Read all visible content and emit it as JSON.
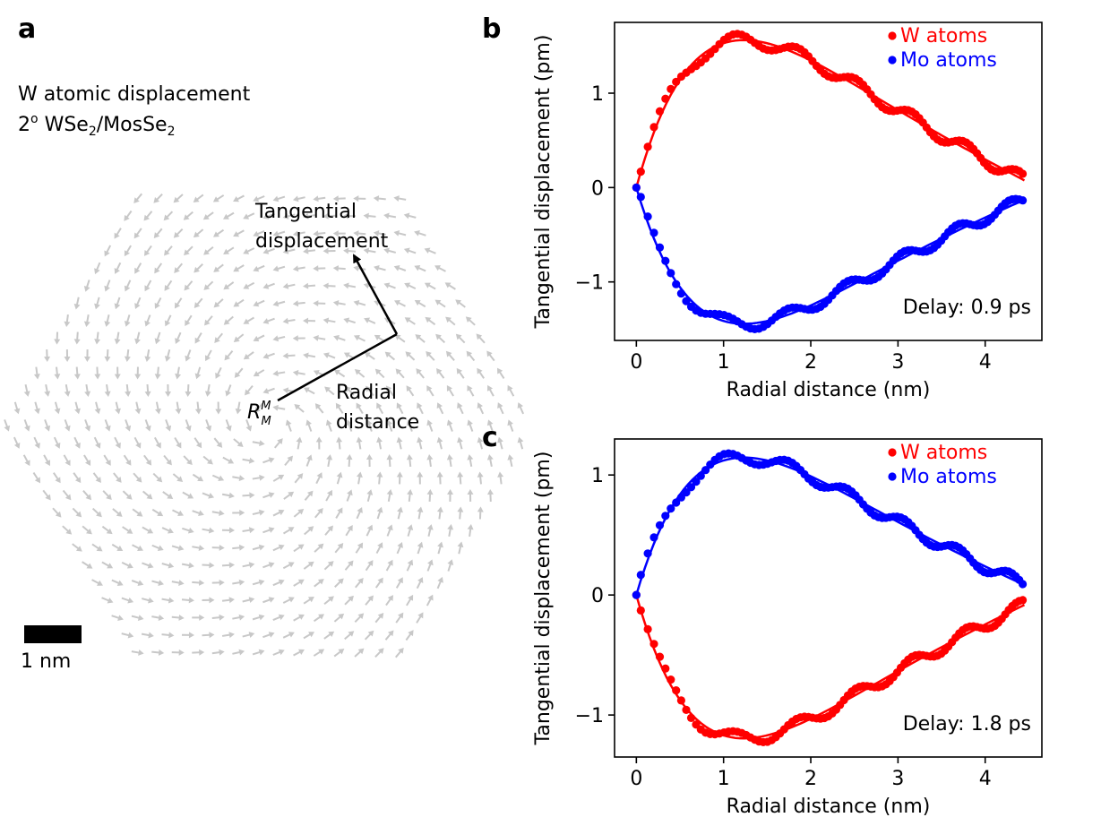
{
  "panel_a": {
    "label": "a",
    "title": "W atomic displacement",
    "material_prefix": "2",
    "degree": "o",
    "material_w": "WSe",
    "material_sub1": "2",
    "material_sep": "/MosSe",
    "material_sub2": "2",
    "tangential_line1": "Tangential",
    "tangential_line2": "displacement",
    "radial_line1": "Radial",
    "radial_line2": "distance",
    "origin_base": "R",
    "origin_sup": "M",
    "origin_sub": "M",
    "scale_bar_label": "1 nm",
    "arrow_color": "#c8c8c8"
  },
  "colors": {
    "w": "#ff0000",
    "mo": "#0000ff"
  },
  "chart_data": [
    {
      "panel": "b",
      "type": "scatter",
      "xlabel": "Radial distance (nm)",
      "ylabel": "Tangential displacement (pm)",
      "xlim": [
        -0.25,
        4.65
      ],
      "ylim": [
        -1.62,
        1.75
      ],
      "xticks": [
        0,
        1,
        2,
        3,
        4
      ],
      "yticks": [
        -1,
        0,
        1
      ],
      "ytick_labels": [
        "−1",
        "0",
        "1"
      ],
      "annotation": "Delay: 0.9 ps",
      "legend": [
        "W atoms",
        "Mo atoms"
      ],
      "series": [
        {
          "name": "W atoms",
          "color": "#ff0000",
          "peak": 1.57,
          "end": 0.1
        },
        {
          "name": "Mo atoms",
          "color": "#0000ff",
          "peak": -1.45,
          "end": -0.15
        }
      ]
    },
    {
      "panel": "c",
      "type": "scatter",
      "xlabel": "Radial distance (nm)",
      "ylabel": "Tangential displacement (pm)",
      "xlim": [
        -0.25,
        4.65
      ],
      "ylim": [
        -1.35,
        1.3
      ],
      "xticks": [
        0,
        1,
        2,
        3,
        4
      ],
      "yticks": [
        -1,
        0,
        1
      ],
      "ytick_labels": [
        "−1",
        "0",
        "1"
      ],
      "annotation": "Delay: 1.8 ps",
      "legend": [
        "W atoms",
        "Mo atoms"
      ],
      "series": [
        {
          "name": "W atoms",
          "color": "#ff0000",
          "peak": -1.2,
          "end": -0.1
        },
        {
          "name": "Mo atoms",
          "color": "#0000ff",
          "peak": 1.15,
          "end": 0.1
        }
      ]
    }
  ]
}
